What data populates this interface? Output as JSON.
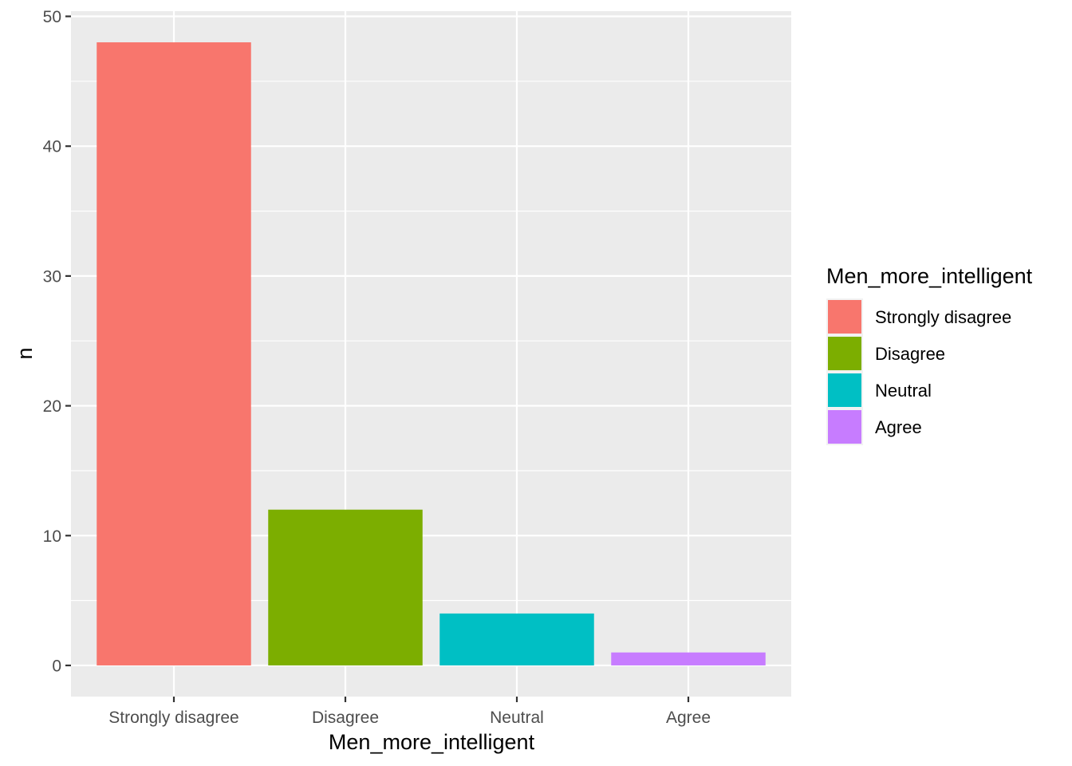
{
  "chart_data": {
    "type": "bar",
    "categories": [
      "Strongly disagree",
      "Disagree",
      "Neutral",
      "Agree"
    ],
    "values": [
      48,
      12,
      4,
      1
    ],
    "colors": [
      "#F8766D",
      "#7CAE00",
      "#00BFC4",
      "#C77CFF"
    ],
    "xlabel": "Men_more_intelligent",
    "ylabel": "n",
    "ylim": [
      -2.4,
      50.4
    ],
    "yticks": [
      0,
      10,
      20,
      30,
      40,
      50
    ],
    "grid": true,
    "panel_background": "#EBEBEB",
    "grid_color": "#FFFFFF",
    "legend": {
      "title": "Men_more_intelligent",
      "position": "right",
      "items": [
        "Strongly disagree",
        "Disagree",
        "Neutral",
        "Agree"
      ]
    }
  }
}
